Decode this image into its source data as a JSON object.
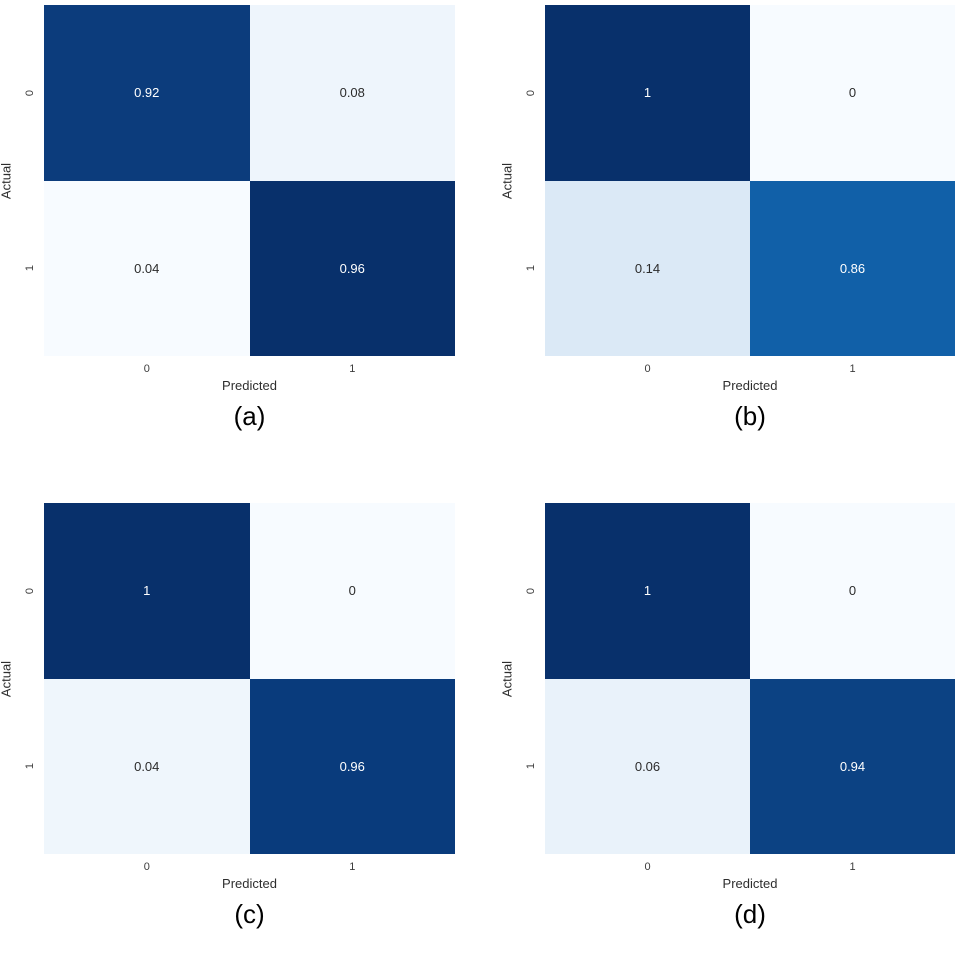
{
  "chart_data": [
    {
      "type": "heatmap",
      "panel": "(a)",
      "colormap": "Blues",
      "xlabel": "Predicted",
      "ylabel": "Actual",
      "x_categories": [
        "0",
        "1"
      ],
      "y_categories": [
        "0",
        "1"
      ],
      "values": [
        [
          0.92,
          0.08
        ],
        [
          0.04,
          0.96
        ]
      ],
      "legend": "none",
      "grid": false
    },
    {
      "type": "heatmap",
      "panel": "(b)",
      "colormap": "Blues",
      "xlabel": "Predicted",
      "ylabel": "Actual",
      "x_categories": [
        "0",
        "1"
      ],
      "y_categories": [
        "0",
        "1"
      ],
      "values": [
        [
          1,
          0
        ],
        [
          0.14,
          0.86
        ]
      ],
      "legend": "none",
      "grid": false
    },
    {
      "type": "heatmap",
      "panel": "(c)",
      "colormap": "Blues",
      "xlabel": "Predicted",
      "ylabel": "Actual",
      "x_categories": [
        "0",
        "1"
      ],
      "y_categories": [
        "0",
        "1"
      ],
      "values": [
        [
          1,
          0
        ],
        [
          0.04,
          0.96
        ]
      ],
      "legend": "none",
      "grid": false
    },
    {
      "type": "heatmap",
      "panel": "(d)",
      "colormap": "Blues",
      "xlabel": "Predicted",
      "ylabel": "Actual",
      "x_categories": [
        "0",
        "1"
      ],
      "y_categories": [
        "0",
        "1"
      ],
      "values": [
        [
          1,
          0
        ],
        [
          0.06,
          0.94
        ]
      ],
      "legend": "none",
      "grid": false
    }
  ],
  "colors": {
    "darkest_blue": "#08306b",
    "lightest_blue": "#f7fbff",
    "annotation_light": "#ffffff",
    "annotation_dark": "#2b2b2b"
  },
  "panels": [
    {
      "caption": "(a)",
      "xlabel": "Predicted",
      "ylabel": "Actual",
      "xticks": [
        "0",
        "1"
      ],
      "yticks": [
        "0",
        "1"
      ],
      "cells": [
        {
          "label": "0.92",
          "bg": "#0c3c7c",
          "fg": "#ffffff"
        },
        {
          "label": "0.08",
          "bg": "#eef5fc",
          "fg": "#2b2b2b"
        },
        {
          "label": "0.04",
          "bg": "#f7fbff",
          "fg": "#2b2b2b"
        },
        {
          "label": "0.96",
          "bg": "#08306b",
          "fg": "#ffffff"
        }
      ]
    },
    {
      "caption": "(b)",
      "xlabel": "Predicted",
      "ylabel": "Actual",
      "xticks": [
        "0",
        "1"
      ],
      "yticks": [
        "0",
        "1"
      ],
      "cells": [
        {
          "label": "1",
          "bg": "#08306b",
          "fg": "#ffffff"
        },
        {
          "label": "0",
          "bg": "#f7fbff",
          "fg": "#2b2b2b"
        },
        {
          "label": "0.14",
          "bg": "#dbe9f6",
          "fg": "#2b2b2b"
        },
        {
          "label": "0.86",
          "bg": "#1160a8",
          "fg": "#ffffff"
        }
      ]
    },
    {
      "caption": "(c)",
      "xlabel": "Predicted",
      "ylabel": "Actual",
      "xticks": [
        "0",
        "1"
      ],
      "yticks": [
        "0",
        "1"
      ],
      "cells": [
        {
          "label": "1",
          "bg": "#08306b",
          "fg": "#ffffff"
        },
        {
          "label": "0",
          "bg": "#f7fbff",
          "fg": "#2b2b2b"
        },
        {
          "label": "0.04",
          "bg": "#eff6fc",
          "fg": "#2b2b2b"
        },
        {
          "label": "0.96",
          "bg": "#093b7c",
          "fg": "#ffffff"
        }
      ]
    },
    {
      "caption": "(d)",
      "xlabel": "Predicted",
      "ylabel": "Actual",
      "xticks": [
        "0",
        "1"
      ],
      "yticks": [
        "0",
        "1"
      ],
      "cells": [
        {
          "label": "1",
          "bg": "#08306b",
          "fg": "#ffffff"
        },
        {
          "label": "0",
          "bg": "#f7fbff",
          "fg": "#2b2b2b"
        },
        {
          "label": "0.06",
          "bg": "#e9f2fa",
          "fg": "#2b2b2b"
        },
        {
          "label": "0.94",
          "bg": "#0c4283",
          "fg": "#ffffff"
        }
      ]
    }
  ]
}
